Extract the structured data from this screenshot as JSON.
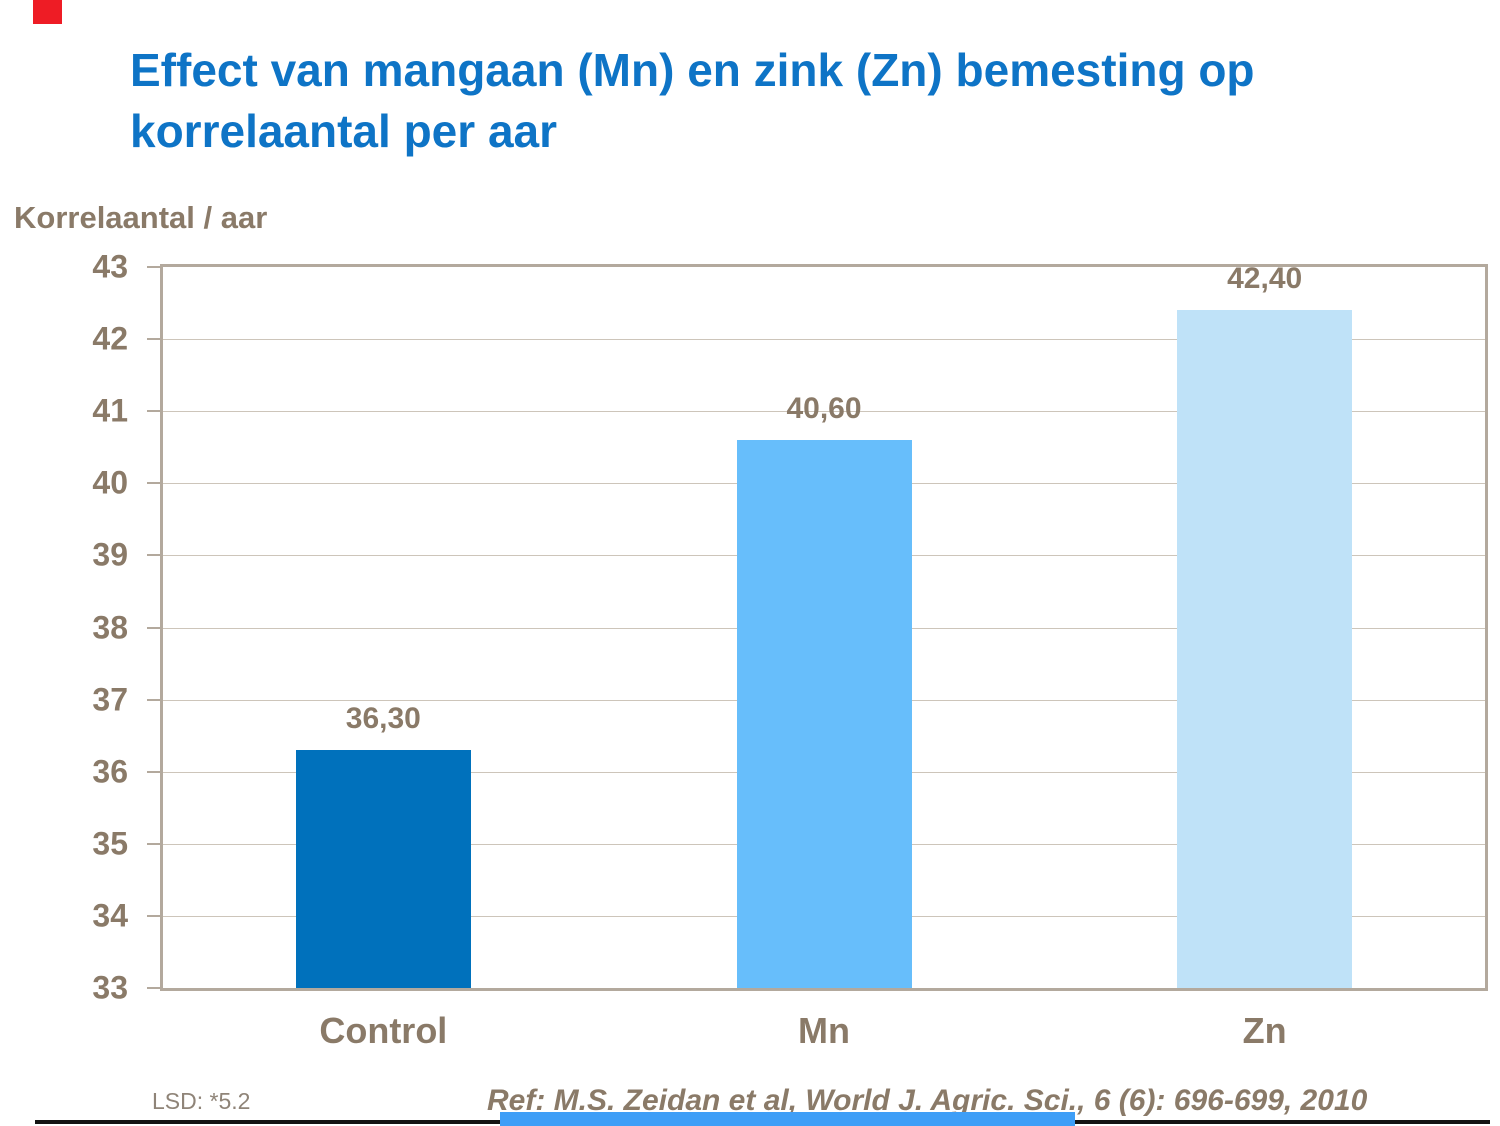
{
  "slide": {
    "title_line1": "Effect van mangaan (Mn) en zink (Zn) bemesting op",
    "title_line2": "korrelaantal per aar",
    "footer_left": "LSD: *5.2",
    "footer_ref": "Ref: M.S. Zeidan et al, World J. Agric. Sci., 6 (6): 696-699, 2010"
  },
  "colors": {
    "title_blue": "#0E74C6",
    "brown": "#8A7A68",
    "lsd_gray": "#8F8478",
    "frame": "#B3A99D",
    "grid": "#CDC5BA",
    "rule_dark": "#141414",
    "accent_blue": "#3E9EF7",
    "marker_red": "#EE1C25"
  },
  "chart_data": {
    "type": "bar",
    "title": "Effect van mangaan (Mn) en zink (Zn) bemesting op korrelaantal per aar",
    "xlabel": "",
    "ylabel": "Korrelaantal / aar",
    "categories": [
      "Control",
      "Mn",
      "Zn"
    ],
    "values": [
      36.3,
      40.6,
      42.4
    ],
    "value_labels": [
      "36,30",
      "40,60",
      "42,40"
    ],
    "bar_colors": [
      "#0071BC",
      "#67BEFB",
      "#BFE2F8"
    ],
    "ylim": [
      33,
      43
    ],
    "ytick_step": 1,
    "yticks": [
      33,
      34,
      35,
      36,
      37,
      38,
      39,
      40,
      41,
      42,
      43
    ],
    "grid": "horizontal",
    "legend": "none",
    "annotations": [
      "LSD: *5.2",
      "Ref: M.S. Zeidan et al, World J. Agric. Sci., 6 (6): 696-699, 2010"
    ]
  }
}
